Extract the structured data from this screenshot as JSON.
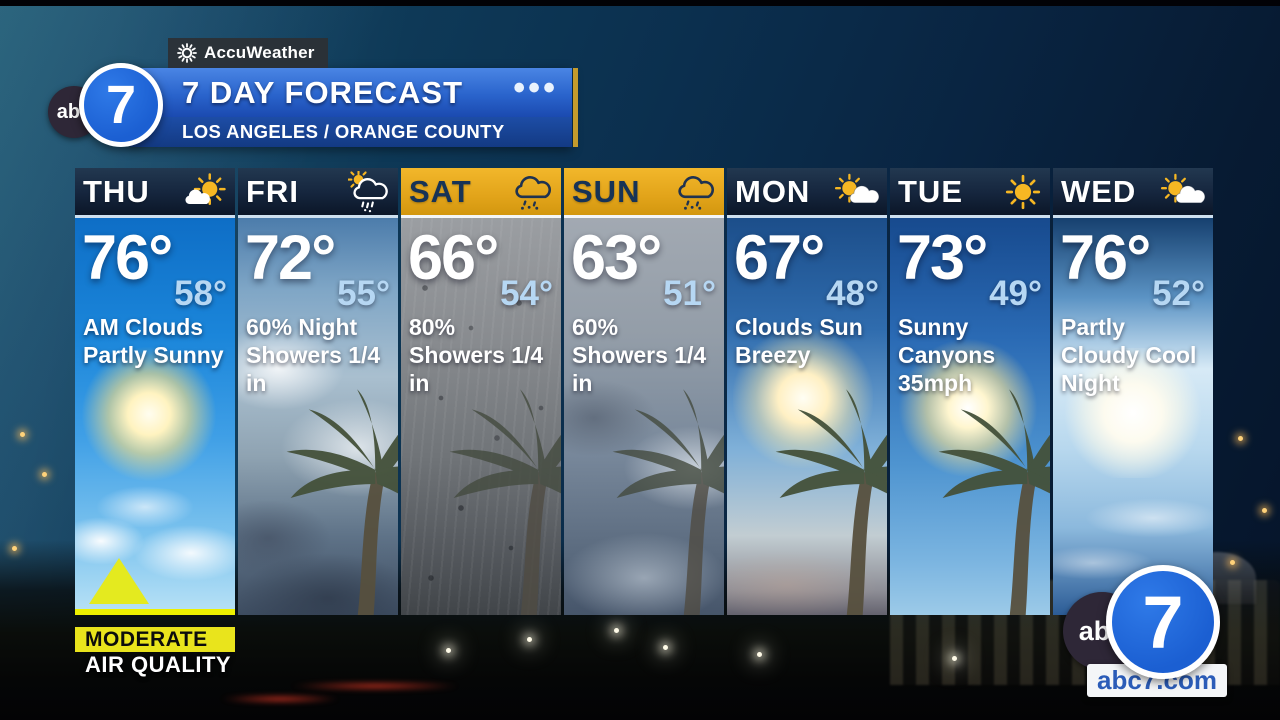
{
  "accuweather": {
    "label": "AccuWeather"
  },
  "banner": {
    "title": "7 DAY FORECAST",
    "dots": "•••",
    "subtitle": "LOS ANGELES / ORANGE COUNTY"
  },
  "station": {
    "abc_text": "abc",
    "seven_text": "7",
    "site_label": "abc7.com"
  },
  "air_quality": {
    "level": "MODERATE",
    "label": "AIR QUALITY"
  },
  "forecast": {
    "days": [
      {
        "day": "THU",
        "icon": "mostly-sunny",
        "hi": "76°",
        "lo": "58°",
        "condition": "AM Clouds Partly Sunny",
        "header_style": "navy",
        "bg": "thu",
        "palm": false,
        "aqi": true
      },
      {
        "day": "FRI",
        "icon": "sun-showers",
        "hi": "72°",
        "lo": "55°",
        "condition": "60% Night Showers 1/4 in",
        "header_style": "navy",
        "bg": "fri",
        "palm": true,
        "aqi": false
      },
      {
        "day": "SAT",
        "icon": "showers-drizzle",
        "hi": "66°",
        "lo": "54°",
        "condition": "80% Showers 1/4 in",
        "header_style": "gold",
        "bg": "sat",
        "palm": true,
        "aqi": false
      },
      {
        "day": "SUN",
        "icon": "showers-drizzle",
        "hi": "63°",
        "lo": "51°",
        "condition": "60% Showers 1/4 in",
        "header_style": "gold",
        "bg": "sun",
        "palm": true,
        "aqi": false
      },
      {
        "day": "MON",
        "icon": "partly-cloudy",
        "hi": "67°",
        "lo": "48°",
        "condition": "Clouds Sun Breezy",
        "header_style": "navy",
        "bg": "mon",
        "palm": true,
        "aqi": false
      },
      {
        "day": "TUE",
        "icon": "sunny",
        "hi": "73°",
        "lo": "49°",
        "condition": "Sunny Canyons 35mph",
        "header_style": "navy",
        "bg": "tue",
        "palm": true,
        "aqi": false
      },
      {
        "day": "WED",
        "icon": "partly-cloudy",
        "hi": "76°",
        "lo": "52°",
        "condition": "Partly Cloudy Cool Night",
        "header_style": "navy",
        "bg": "wed",
        "palm": false,
        "aqi": false
      }
    ]
  },
  "colors": {
    "banner_blue": "#2a64cc",
    "banner_sub_blue": "#173f8f",
    "header_navy": "#15253d",
    "header_gold": "#e7a91f",
    "gold_edge_bar": "#c49b2d",
    "low_temp_blue": "#b6d7f3",
    "aqi_yellow": "#e9e41c",
    "site_text_blue": "#2b5cb8"
  }
}
